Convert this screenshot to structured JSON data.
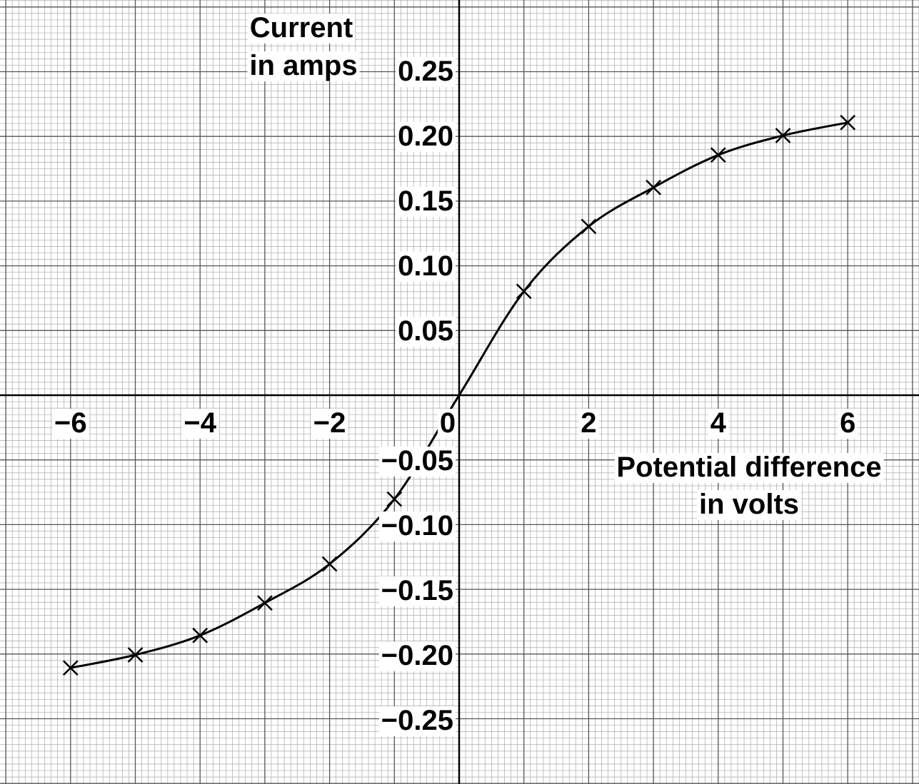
{
  "chart_data": {
    "type": "line",
    "xlabel": [
      "Potential difference",
      "in volts"
    ],
    "ylabel": [
      "Current",
      "in amps"
    ],
    "x_tick_labels": [
      "−6",
      "−4",
      "−2",
      "0",
      "2",
      "4",
      "6"
    ],
    "x_ticks": [
      -6,
      -4,
      -2,
      0,
      2,
      4,
      6
    ],
    "y_tick_labels": [
      "0.25",
      "0.20",
      "0.15",
      "0.10",
      "0.05",
      "−0.05",
      "−0.10",
      "−0.15",
      "−0.20",
      "−0.25"
    ],
    "y_ticks": [
      0.25,
      0.2,
      0.15,
      0.1,
      0.05,
      -0.05,
      -0.1,
      -0.15,
      -0.2,
      -0.25
    ],
    "xlim": [
      -7,
      7
    ],
    "ylim": [
      -0.29,
      0.3
    ],
    "grid": true,
    "marker": "x",
    "series": [
      {
        "x": [
          -6,
          -5,
          -4,
          -3,
          -2,
          -1,
          0,
          1,
          2,
          3,
          4,
          5,
          6
        ],
        "y": [
          -0.21,
          -0.2,
          -0.185,
          -0.16,
          -0.13,
          -0.08,
          0.0,
          0.08,
          0.13,
          0.16,
          0.185,
          0.2,
          0.21
        ]
      }
    ]
  }
}
